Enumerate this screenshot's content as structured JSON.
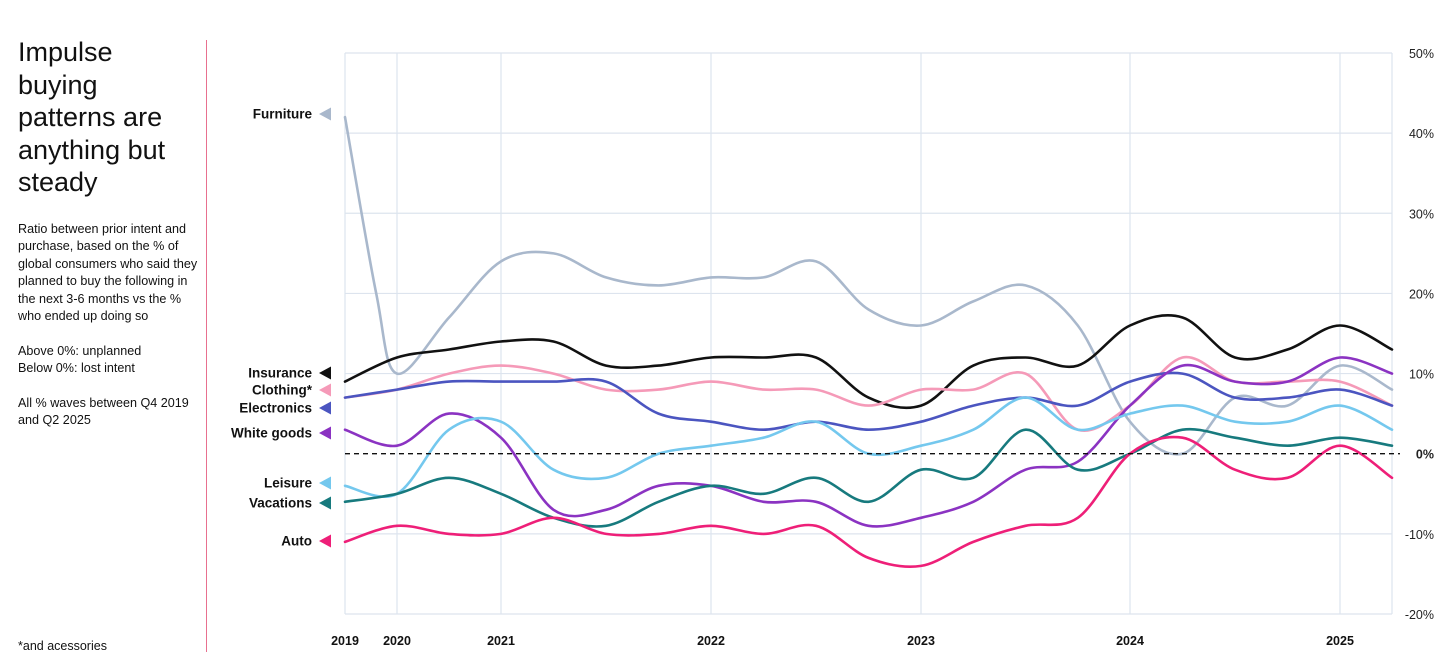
{
  "headline": "Impulse buying patterns are anything but steady",
  "description": {
    "p1": "Ratio between prior intent and purchase, based on the % of global consumers who said they planned to buy the following in the next 3-6 months vs the % who ended up doing so",
    "p2a": "Above 0%: unplanned",
    "p2b": "Below 0%: lost intent",
    "p3": "All % waves between Q4 2019 and Q2 2025"
  },
  "footnote": "*and acessories",
  "chart_data": {
    "type": "line",
    "x_tick_labels": [
      "2019",
      "2020",
      "2021",
      "2022",
      "2023",
      "2024",
      "2025"
    ],
    "x_tick_positions": [
      2019.75,
      2020.0,
      2020.5,
      2021.5,
      2022.5,
      2023.5,
      2024.5
    ],
    "x_range": [
      2019.75,
      2024.75
    ],
    "y_tick_labels": [
      "50%",
      "40%",
      "30%",
      "20%",
      "10%",
      "0%",
      "-10%",
      "-20%"
    ],
    "y_tick_values": [
      50,
      40,
      30,
      20,
      10,
      0,
      -10,
      -20
    ],
    "ylim": [
      -20,
      50
    ],
    "zero_line": "dashed",
    "series": [
      {
        "name": "Furniture",
        "color": "#a9b8cc",
        "x": [
          2019.75,
          2019.9,
          2020.0,
          2020.25,
          2020.5,
          2020.75,
          2021.0,
          2021.25,
          2021.5,
          2021.75,
          2022.0,
          2022.25,
          2022.5,
          2022.75,
          2023.0,
          2023.25,
          2023.5,
          2023.75,
          2024.0,
          2024.25,
          2024.5,
          2024.75
        ],
        "values": [
          42,
          20,
          10,
          17,
          24,
          25,
          22,
          21,
          22,
          22,
          24,
          18,
          16,
          19,
          21,
          16,
          4,
          0,
          7,
          6,
          11,
          8
        ]
      },
      {
        "name": "Insurance",
        "color": "#111111",
        "x": [
          2019.75,
          2020.0,
          2020.25,
          2020.5,
          2020.75,
          2021.0,
          2021.25,
          2021.5,
          2021.75,
          2022.0,
          2022.25,
          2022.5,
          2022.75,
          2023.0,
          2023.25,
          2023.5,
          2023.75,
          2024.0,
          2024.25,
          2024.5,
          2024.75
        ],
        "values": [
          9,
          12,
          13,
          14,
          14,
          11,
          11,
          12,
          12,
          12,
          7,
          6,
          11,
          12,
          11,
          16,
          17,
          12,
          13,
          16,
          13
        ]
      },
      {
        "name": "Clothing*",
        "color": "#f59ab8",
        "x": [
          2019.75,
          2020.0,
          2020.25,
          2020.5,
          2020.75,
          2021.0,
          2021.25,
          2021.5,
          2021.75,
          2022.0,
          2022.25,
          2022.5,
          2022.75,
          2023.0,
          2023.25,
          2023.5,
          2023.75,
          2024.0,
          2024.25,
          2024.5,
          2024.75
        ],
        "values": [
          7,
          8,
          10,
          11,
          10,
          8,
          8,
          9,
          8,
          8,
          6,
          8,
          8,
          10,
          3,
          6,
          12,
          9,
          9,
          9,
          6
        ]
      },
      {
        "name": "Electronics",
        "color": "#4b55c0",
        "x": [
          2019.75,
          2020.0,
          2020.25,
          2020.5,
          2020.75,
          2021.0,
          2021.25,
          2021.5,
          2021.75,
          2022.0,
          2022.25,
          2022.5,
          2022.75,
          2023.0,
          2023.25,
          2023.5,
          2023.75,
          2024.0,
          2024.25,
          2024.5,
          2024.75
        ],
        "values": [
          7,
          8,
          9,
          9,
          9,
          9,
          5,
          4,
          3,
          4,
          3,
          4,
          6,
          7,
          6,
          9,
          10,
          7,
          7,
          8,
          6
        ]
      },
      {
        "name": "White goods",
        "color": "#8b33c2",
        "x": [
          2019.75,
          2020.0,
          2020.25,
          2020.5,
          2020.75,
          2021.0,
          2021.25,
          2021.5,
          2021.75,
          2022.0,
          2022.25,
          2022.5,
          2022.75,
          2023.0,
          2023.25,
          2023.5,
          2023.75,
          2024.0,
          2024.25,
          2024.5,
          2024.75
        ],
        "values": [
          3,
          1,
          5,
          2,
          -7,
          -7,
          -4,
          -4,
          -6,
          -6,
          -9,
          -8,
          -6,
          -2,
          -1,
          6,
          11,
          9,
          9,
          12,
          10
        ]
      },
      {
        "name": "Leisure",
        "color": "#74c8ee",
        "x": [
          2019.75,
          2020.0,
          2020.25,
          2020.5,
          2020.75,
          2021.0,
          2021.25,
          2021.5,
          2021.75,
          2022.0,
          2022.25,
          2022.5,
          2022.75,
          2023.0,
          2023.25,
          2023.5,
          2023.75,
          2024.0,
          2024.25,
          2024.5,
          2024.75
        ],
        "values": [
          -4,
          -5,
          3,
          4,
          -2,
          -3,
          0,
          1,
          2,
          4,
          0,
          1,
          3,
          7,
          3,
          5,
          6,
          4,
          4,
          6,
          3
        ]
      },
      {
        "name": "Vacations",
        "color": "#177a7e",
        "x": [
          2019.75,
          2020.0,
          2020.25,
          2020.5,
          2020.75,
          2021.0,
          2021.25,
          2021.5,
          2021.75,
          2022.0,
          2022.25,
          2022.5,
          2022.75,
          2023.0,
          2023.25,
          2023.5,
          2023.75,
          2024.0,
          2024.25,
          2024.5,
          2024.75
        ],
        "values": [
          -6,
          -5,
          -3,
          -5,
          -8,
          -9,
          -6,
          -4,
          -5,
          -3,
          -6,
          -2,
          -3,
          3,
          -2,
          0,
          3,
          2,
          1,
          2,
          1
        ]
      },
      {
        "name": "Auto",
        "color": "#ee1f78",
        "x": [
          2019.75,
          2020.0,
          2020.25,
          2020.5,
          2020.75,
          2021.0,
          2021.25,
          2021.5,
          2021.75,
          2022.0,
          2022.25,
          2022.5,
          2022.75,
          2023.0,
          2023.25,
          2023.5,
          2023.75,
          2024.0,
          2024.25,
          2024.5,
          2024.75
        ],
        "values": [
          -11,
          -9,
          -10,
          -10,
          -8,
          -10,
          -10,
          -9,
          -10,
          -9,
          -13,
          -14,
          -11,
          -9,
          -8,
          0,
          2,
          -2,
          -3,
          1,
          -3
        ]
      }
    ]
  }
}
